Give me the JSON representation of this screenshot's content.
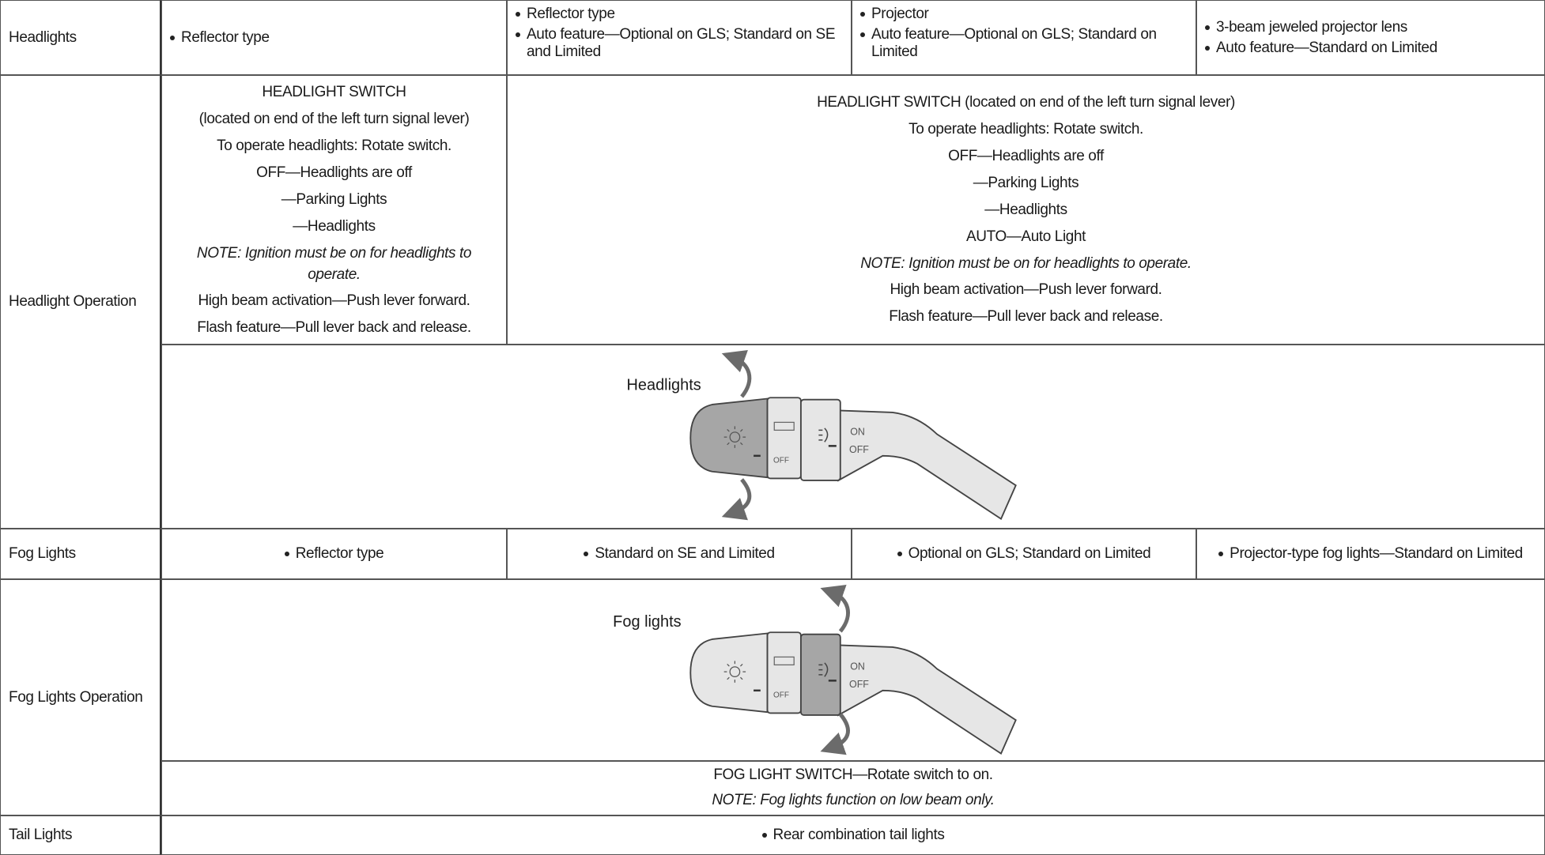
{
  "rows": [
    {
      "label": "Headlights",
      "cells": [
        [
          "Reflector type"
        ],
        [
          "Reflector type",
          "Auto feature—Optional on GLS; Standard on SE and Limited"
        ],
        [
          "Projector",
          "Auto feature—Optional on GLS; Standard on Limited"
        ],
        [
          "3-beam jeweled projector lens",
          "Auto feature—Standard on Limited"
        ]
      ]
    },
    {
      "label": "Headlight Operation",
      "left": {
        "lines": [
          "HEADLIGHT SWITCH",
          "(located on end of the left turn signal lever)",
          "To operate headlights: Rotate switch.",
          "OFF—Headlights are off",
          "—Parking Lights",
          "—Headlights"
        ],
        "note": "NOTE: Ignition must be on for headlights to operate.",
        "after": [
          "High beam activation—Push lever forward.",
          "Flash feature—Pull lever back and release."
        ]
      },
      "right": {
        "lines": [
          "HEADLIGHT SWITCH (located on end of the left turn signal lever)",
          "To operate headlights: Rotate switch.",
          "OFF—Headlights are off",
          "—Parking Lights",
          "—Headlights",
          "AUTO—Auto Light"
        ],
        "note": "NOTE: Ignition must be on for headlights to operate.",
        "after": [
          "High beam activation—Push lever forward.",
          "Flash feature—Pull lever back and release."
        ]
      },
      "figure": {
        "caption": "Headlights",
        "band_label": "OFF",
        "on": "ON",
        "off": "OFF"
      }
    },
    {
      "label": "Fog Lights",
      "cells": [
        [
          "Reflector type"
        ],
        [
          "Standard on SE and Limited"
        ],
        [
          "Optional on GLS; Standard on Limited"
        ],
        [
          "Projector-type fog lights—Standard on Limited"
        ]
      ]
    },
    {
      "label": "Fog Lights Operation",
      "figure": {
        "caption": "Fog lights",
        "band_label": "OFF",
        "on": "ON",
        "off": "OFF"
      },
      "text": {
        "lines": [
          "FOG LIGHT SWITCH—Rotate switch to on."
        ],
        "note": "NOTE: Fog lights function on low beam only."
      }
    },
    {
      "label": "Tail Lights",
      "cells": [
        [
          "Rear combination tail lights"
        ]
      ]
    }
  ]
}
